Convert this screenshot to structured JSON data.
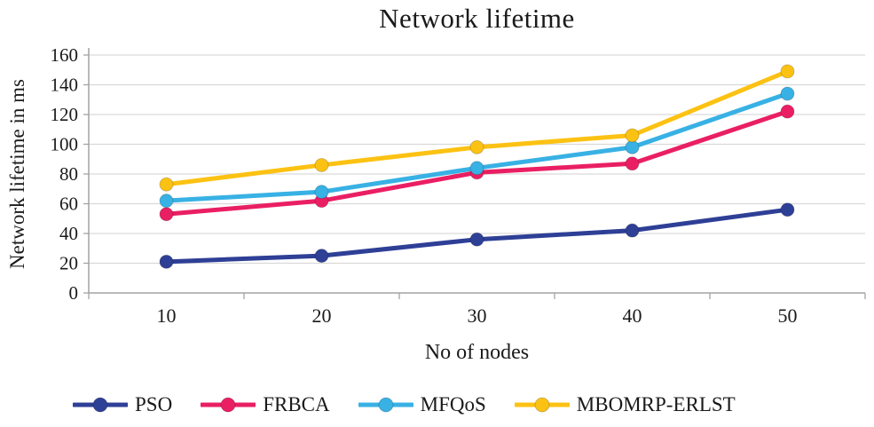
{
  "chart_data": {
    "type": "line",
    "title": "Network lifetime",
    "xlabel": "No of nodes",
    "ylabel": "Network lifetime in ms",
    "x": [
      10,
      20,
      30,
      40,
      50
    ],
    "ylim": [
      0,
      160
    ],
    "yticks": [
      0,
      20,
      40,
      60,
      80,
      100,
      120,
      140,
      160
    ],
    "grid": true,
    "legend_position": "bottom",
    "series": [
      {
        "name": "PSO",
        "color": "#2e3f96",
        "values": [
          21,
          25,
          36,
          42,
          56
        ]
      },
      {
        "name": "FRBCA",
        "color": "#ea1f63",
        "values": [
          53,
          62,
          81,
          87,
          122
        ]
      },
      {
        "name": "MFQoS",
        "color": "#38b1e4",
        "values": [
          62,
          68,
          84,
          98,
          134
        ]
      },
      {
        "name": "MBOMRP-ERLST",
        "color": "#fcc213",
        "values": [
          73,
          86,
          98,
          106,
          149
        ]
      }
    ]
  }
}
